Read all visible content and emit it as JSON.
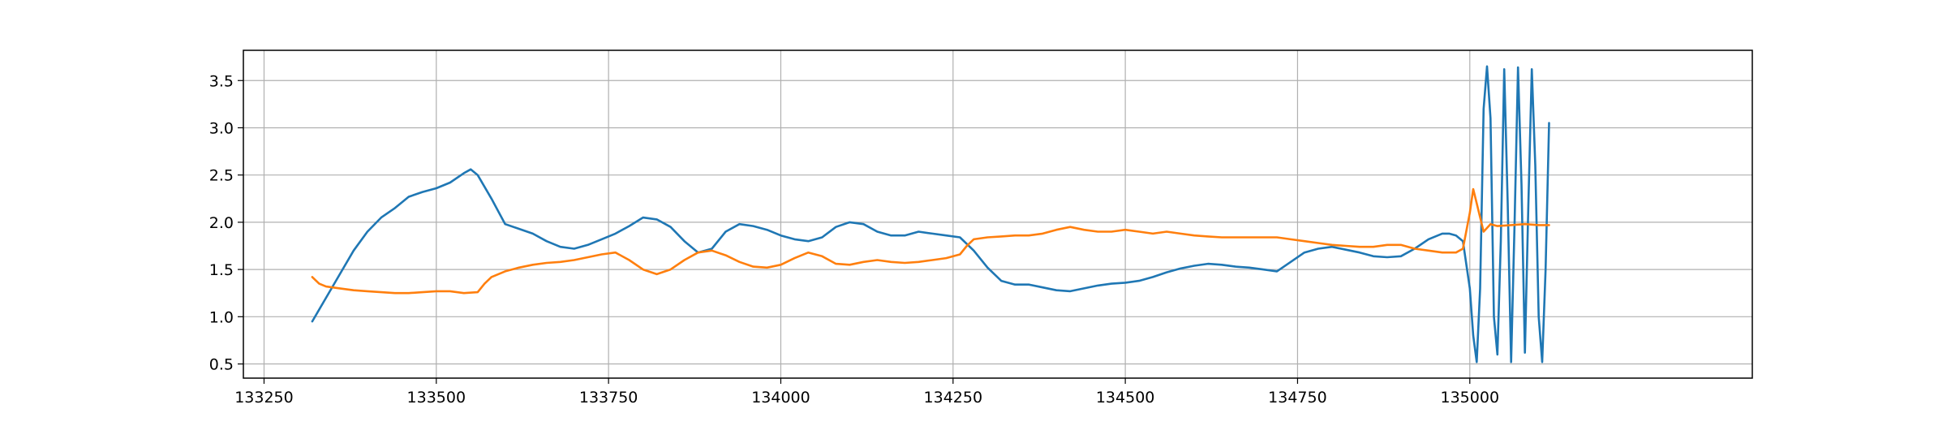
{
  "chart_data": {
    "type": "line",
    "title": "",
    "xlabel": "",
    "ylabel": "",
    "xlim": [
      133220,
      135410
    ],
    "ylim": [
      0.35,
      3.82
    ],
    "grid": true,
    "x_ticks": [
      133250,
      133500,
      133750,
      134000,
      134250,
      134500,
      134750,
      135000
    ],
    "x_tick_labels": [
      "133250",
      "133500",
      "133750",
      "134000",
      "134250",
      "134500",
      "134750",
      "135000"
    ],
    "y_ticks": [
      0.5,
      1.0,
      1.5,
      2.0,
      2.5,
      3.0,
      3.5
    ],
    "y_tick_labels": [
      "0.5",
      "1.0",
      "1.5",
      "2.0",
      "2.5",
      "3.0",
      "3.5"
    ],
    "series": [
      {
        "color": "#1f77b4",
        "x": [
          133320,
          133340,
          133360,
          133380,
          133400,
          133420,
          133440,
          133460,
          133480,
          133500,
          133520,
          133540,
          133550,
          133560,
          133580,
          133600,
          133620,
          133640,
          133660,
          133680,
          133700,
          133720,
          133740,
          133760,
          133780,
          133800,
          133820,
          133840,
          133860,
          133880,
          133900,
          133920,
          133940,
          133960,
          133980,
          134000,
          134020,
          134040,
          134060,
          134080,
          134100,
          134120,
          134140,
          134160,
          134180,
          134200,
          134220,
          134240,
          134260,
          134280,
          134300,
          134320,
          134340,
          134360,
          134380,
          134400,
          134420,
          134440,
          134460,
          134480,
          134500,
          134520,
          134540,
          134560,
          134580,
          134600,
          134620,
          134640,
          134660,
          134680,
          134700,
          134720,
          134740,
          134760,
          134780,
          134800,
          134820,
          134840,
          134860,
          134880,
          134900,
          134920,
          134940,
          134960,
          134970,
          134980,
          134990,
          135000,
          135005,
          135010,
          135015,
          135020,
          135025,
          135030,
          135035,
          135040,
          135045,
          135050,
          135055,
          135060,
          135065,
          135070,
          135075,
          135080,
          135085,
          135090,
          135095,
          135100,
          135105,
          135110,
          135115
        ],
        "values": [
          0.95,
          1.2,
          1.45,
          1.7,
          1.9,
          2.05,
          2.15,
          2.27,
          2.32,
          2.36,
          2.42,
          2.52,
          2.56,
          2.5,
          2.25,
          1.98,
          1.93,
          1.88,
          1.8,
          1.74,
          1.72,
          1.76,
          1.82,
          1.88,
          1.96,
          2.05,
          2.03,
          1.95,
          1.8,
          1.68,
          1.72,
          1.9,
          1.98,
          1.96,
          1.92,
          1.86,
          1.82,
          1.8,
          1.84,
          1.95,
          2.0,
          1.98,
          1.9,
          1.86,
          1.86,
          1.9,
          1.88,
          1.86,
          1.84,
          1.7,
          1.52,
          1.38,
          1.34,
          1.34,
          1.31,
          1.28,
          1.27,
          1.3,
          1.33,
          1.35,
          1.36,
          1.38,
          1.42,
          1.47,
          1.51,
          1.54,
          1.56,
          1.55,
          1.53,
          1.52,
          1.5,
          1.48,
          1.58,
          1.68,
          1.72,
          1.74,
          1.71,
          1.68,
          1.64,
          1.63,
          1.64,
          1.72,
          1.82,
          1.88,
          1.88,
          1.86,
          1.8,
          1.3,
          0.8,
          0.52,
          1.3,
          3.2,
          3.65,
          3.1,
          1.0,
          0.6,
          1.8,
          3.62,
          2.2,
          0.52,
          2.0,
          3.64,
          2.4,
          0.62,
          2.2,
          3.62,
          2.6,
          1.0,
          0.52,
          1.5,
          3.05
        ]
      },
      {
        "color": "#ff7f0e",
        "x": [
          133320,
          133330,
          133340,
          133360,
          133380,
          133400,
          133420,
          133440,
          133460,
          133480,
          133500,
          133520,
          133540,
          133560,
          133570,
          133580,
          133600,
          133620,
          133640,
          133660,
          133680,
          133700,
          133720,
          133740,
          133760,
          133780,
          133800,
          133820,
          133840,
          133860,
          133880,
          133900,
          133920,
          133940,
          133960,
          133980,
          134000,
          134020,
          134040,
          134060,
          134080,
          134100,
          134120,
          134140,
          134160,
          134180,
          134200,
          134220,
          134240,
          134260,
          134270,
          134280,
          134300,
          134320,
          134340,
          134360,
          134380,
          134400,
          134420,
          134440,
          134460,
          134480,
          134500,
          134520,
          134540,
          134560,
          134580,
          134600,
          134620,
          134640,
          134660,
          134680,
          134700,
          134720,
          134740,
          134760,
          134780,
          134800,
          134820,
          134840,
          134860,
          134880,
          134900,
          134920,
          134940,
          134960,
          134980,
          134990,
          135000,
          135005,
          135010,
          135020,
          135030,
          135040,
          135060,
          135080,
          135100,
          135115
        ],
        "values": [
          1.42,
          1.35,
          1.32,
          1.3,
          1.28,
          1.27,
          1.26,
          1.25,
          1.25,
          1.26,
          1.27,
          1.27,
          1.25,
          1.26,
          1.35,
          1.42,
          1.48,
          1.52,
          1.55,
          1.57,
          1.58,
          1.6,
          1.63,
          1.66,
          1.68,
          1.6,
          1.5,
          1.45,
          1.5,
          1.6,
          1.68,
          1.7,
          1.65,
          1.58,
          1.53,
          1.52,
          1.55,
          1.62,
          1.68,
          1.64,
          1.56,
          1.55,
          1.58,
          1.6,
          1.58,
          1.57,
          1.58,
          1.6,
          1.62,
          1.66,
          1.75,
          1.82,
          1.84,
          1.85,
          1.86,
          1.86,
          1.88,
          1.92,
          1.95,
          1.92,
          1.9,
          1.9,
          1.92,
          1.9,
          1.88,
          1.9,
          1.88,
          1.86,
          1.85,
          1.84,
          1.84,
          1.84,
          1.84,
          1.84,
          1.82,
          1.8,
          1.78,
          1.76,
          1.75,
          1.74,
          1.74,
          1.76,
          1.76,
          1.72,
          1.7,
          1.68,
          1.68,
          1.72,
          2.1,
          2.35,
          2.2,
          1.9,
          1.98,
          1.96,
          1.97,
          1.98,
          1.97,
          1.97
        ]
      }
    ]
  }
}
